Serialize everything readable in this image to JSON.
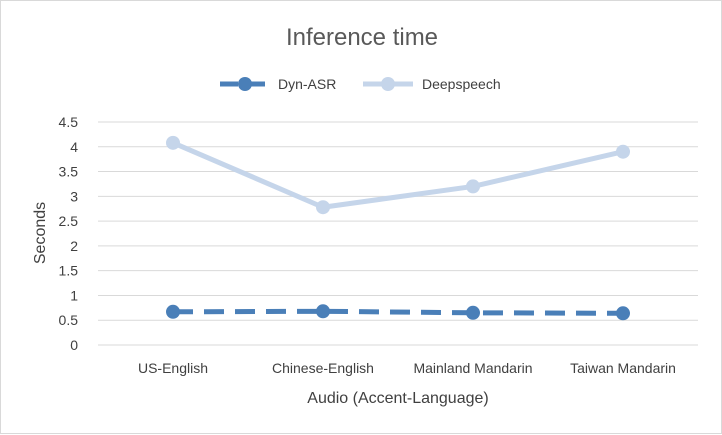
{
  "chart_data": {
    "type": "line",
    "title": "Inference time",
    "xlabel": "Audio (Accent-Language)",
    "ylabel": "Seconds",
    "categories": [
      "US-English",
      "Chinese-English",
      "Mainland Mandarin",
      "Taiwan Mandarin"
    ],
    "ylim": [
      0,
      4.5
    ],
    "yticks": [
      "0",
      "0.5",
      "1",
      "1.5",
      "2",
      "2.5",
      "3",
      "3.5",
      "4",
      "4.5"
    ],
    "grid": "horizontal",
    "legend_position": "top",
    "series": [
      {
        "name": "Dyn-ASR",
        "values": [
          0.67,
          0.68,
          0.65,
          0.64
        ],
        "color": "#4a7fb8",
        "line_style": "dashed",
        "marker": "circle"
      },
      {
        "name": "Deepspeech",
        "values": [
          4.08,
          2.78,
          3.2,
          3.9
        ],
        "color": "#c5d5ea",
        "line_style": "solid",
        "marker": "circle"
      }
    ]
  }
}
